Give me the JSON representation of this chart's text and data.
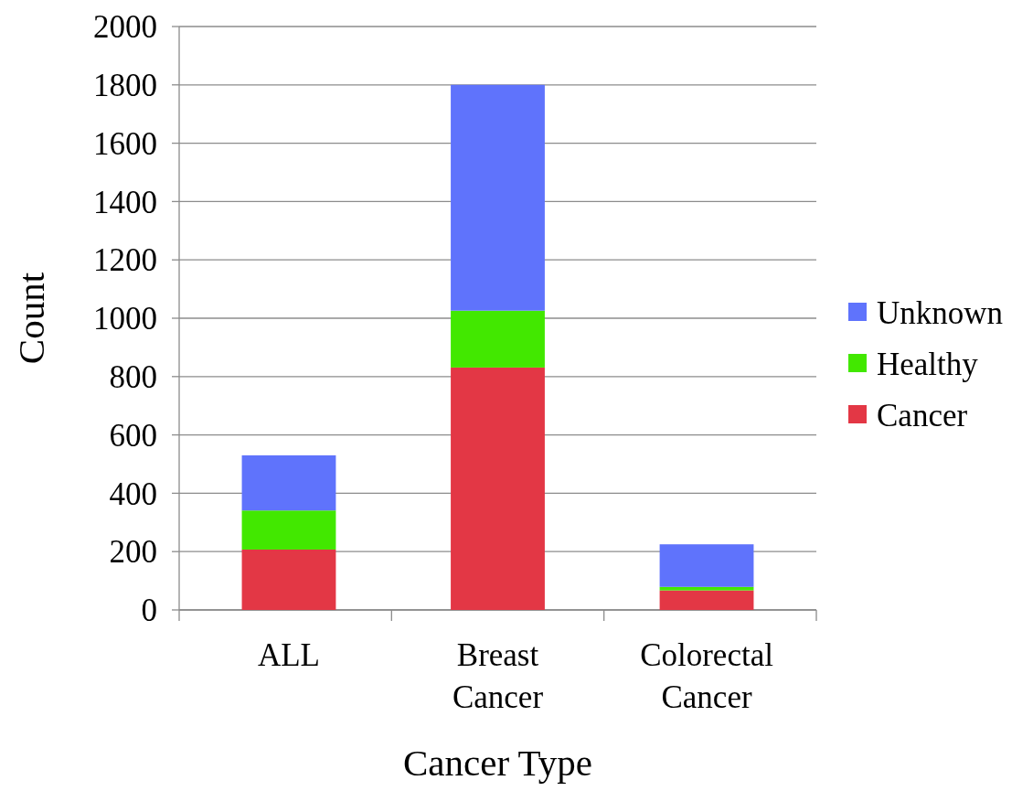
{
  "chart_data": {
    "type": "bar",
    "stacked": true,
    "xlabel": "Cancer Type",
    "ylabel": "Count",
    "categories": [
      "ALL",
      "Breast Cancer",
      "Colorectal Cancer"
    ],
    "series": [
      {
        "name": "Cancer",
        "color": "#e33745",
        "values": [
          207,
          831,
          67
        ]
      },
      {
        "name": "Healthy",
        "color": "#42e800",
        "values": [
          134,
          195,
          12
        ]
      },
      {
        "name": "Unknown",
        "color": "#5f73fc",
        "values": [
          189,
          774,
          146
        ]
      }
    ],
    "ylim": [
      0,
      2000
    ],
    "yticks": [
      0,
      200,
      400,
      600,
      800,
      1000,
      1200,
      1400,
      1600,
      1800,
      2000
    ],
    "grid": "y",
    "legend": "right"
  }
}
